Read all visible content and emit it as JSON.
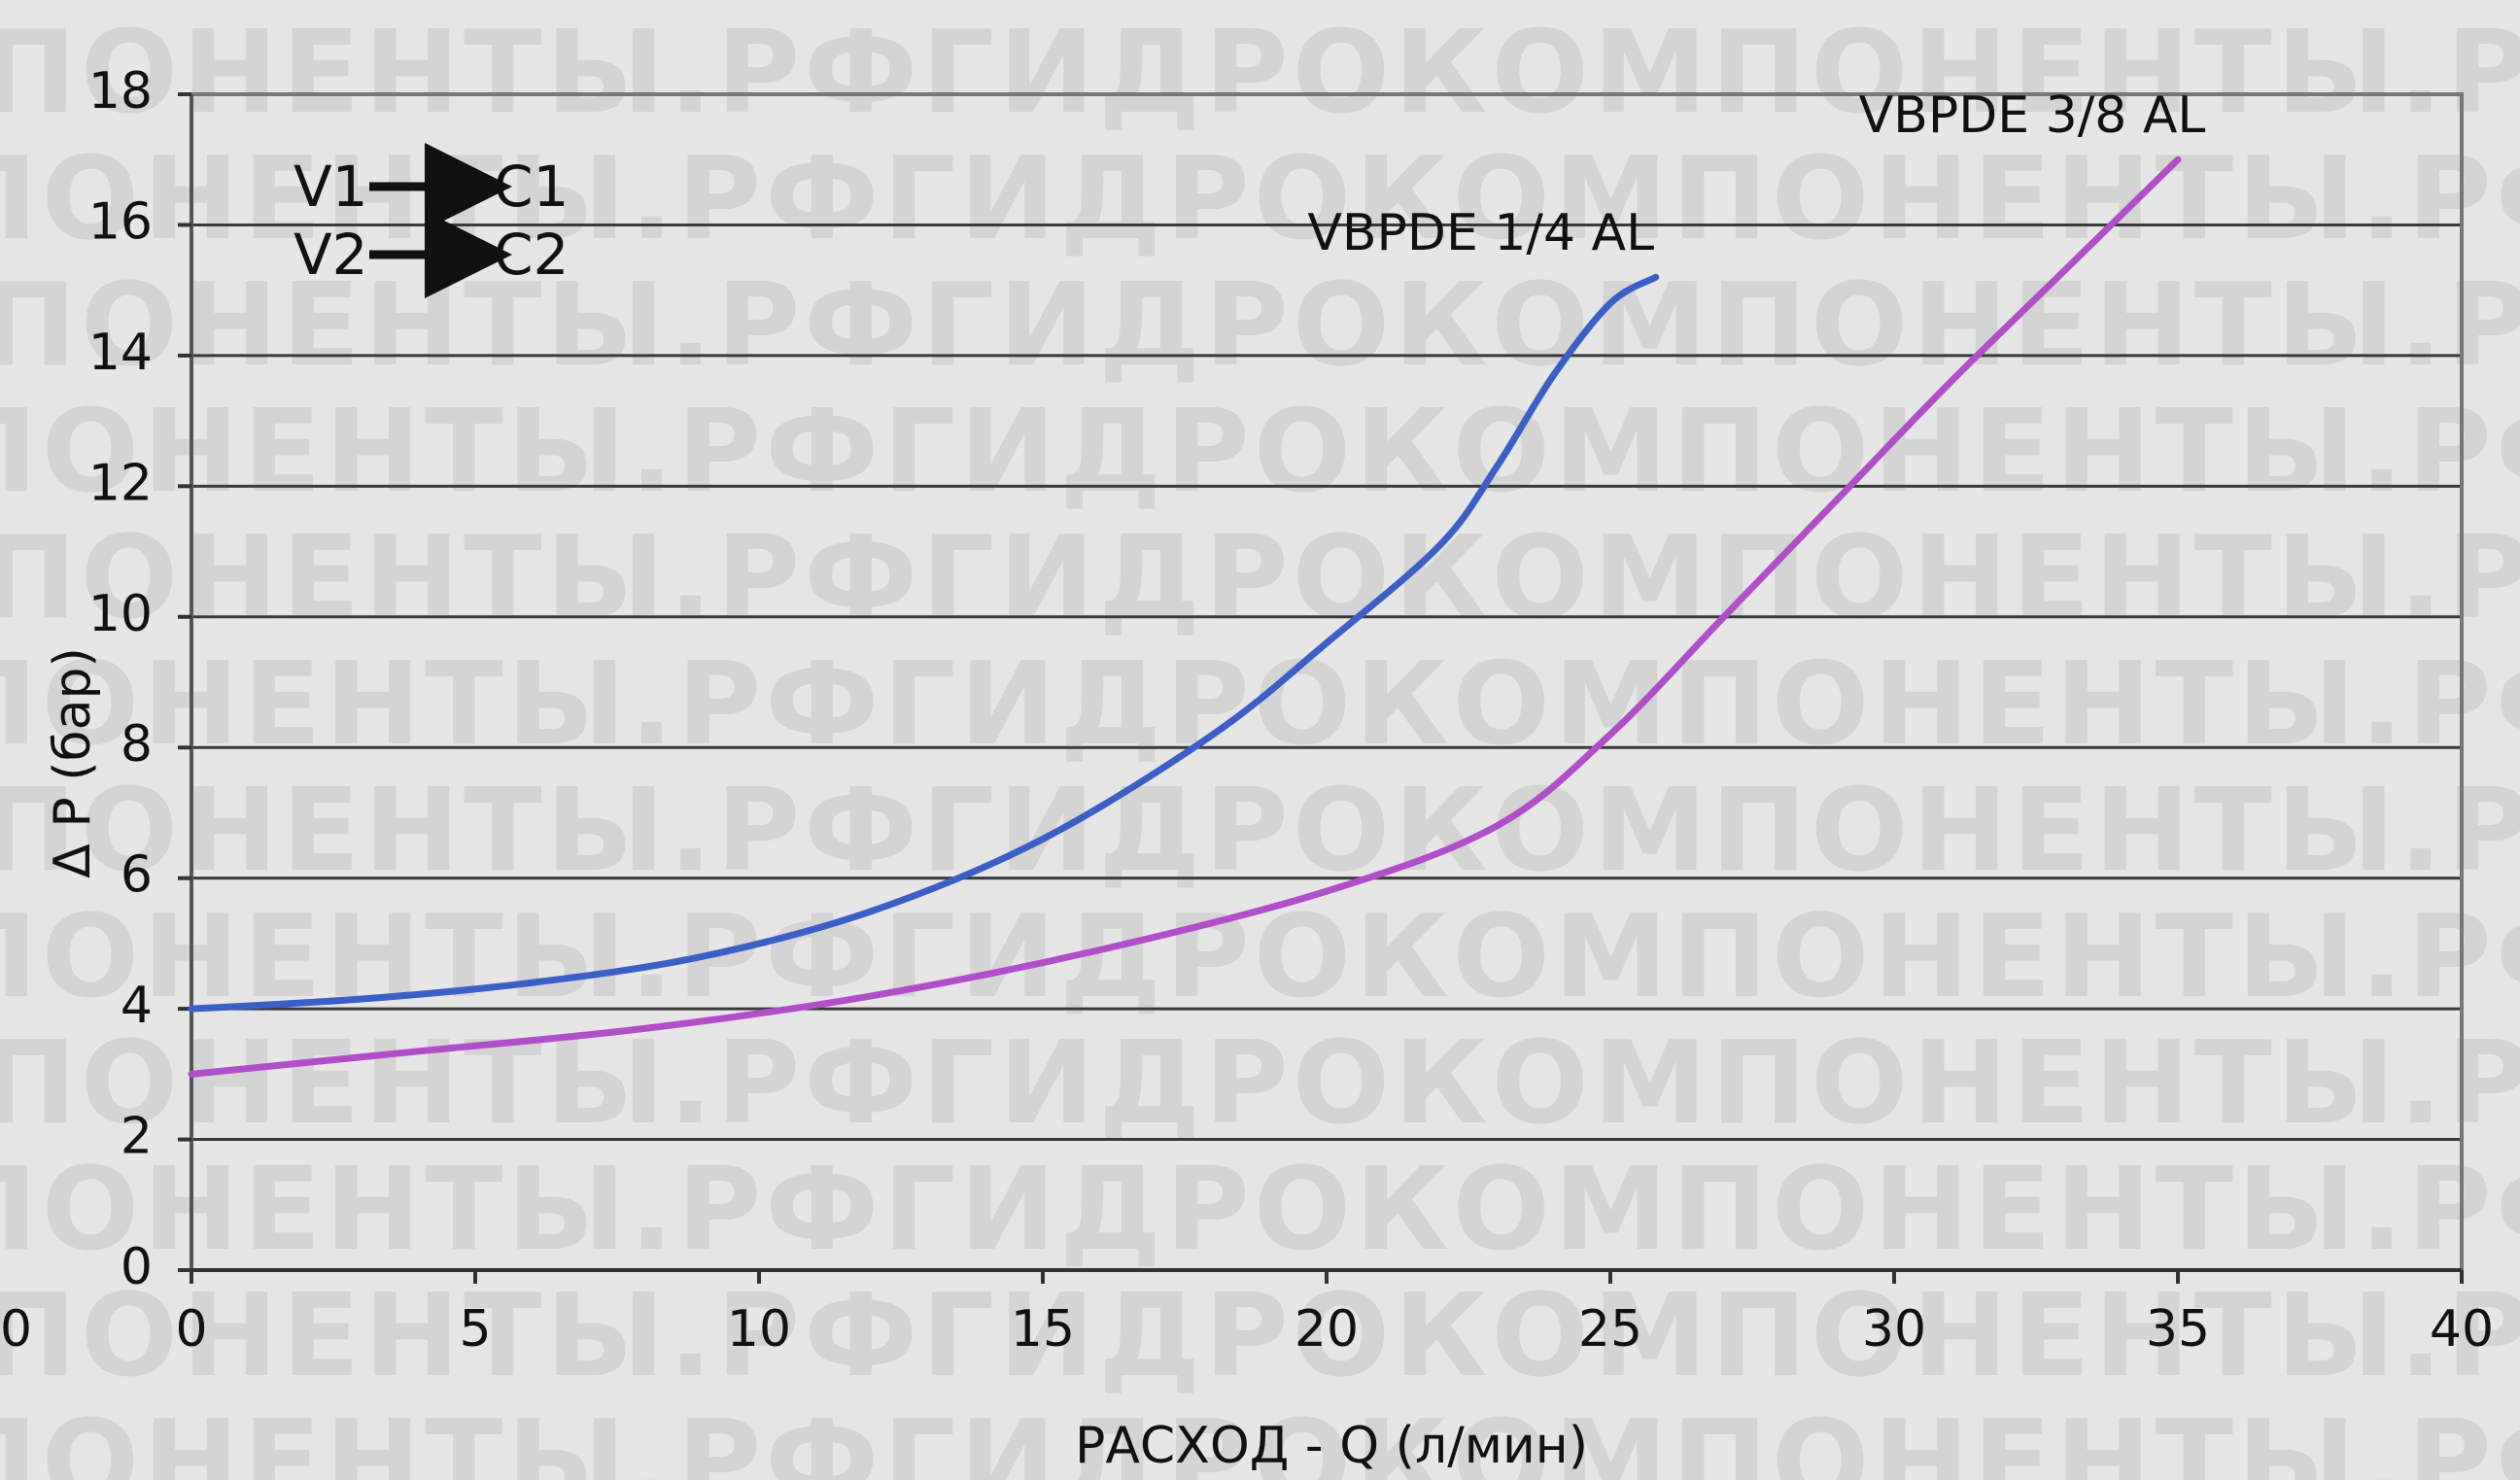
{
  "chart_data": {
    "type": "line",
    "title": "",
    "xlabel": "РАСХОД - Q (л/мин)",
    "ylabel": "Δ P (бар)",
    "xlim": [
      0,
      40
    ],
    "ylim": [
      0,
      18
    ],
    "x_ticks": [
      "0",
      "5",
      "10",
      "15",
      "20",
      "25",
      "30",
      "35",
      "40"
    ],
    "y_ticks": [
      "0",
      "2",
      "4",
      "6",
      "8",
      "10",
      "12",
      "14",
      "16",
      "18"
    ],
    "stray_tick_label": "0",
    "grid": "horizontal",
    "series": [
      {
        "name": "VBPDE 1/4 AL",
        "color": "#3b5fc6",
        "x": [
          0,
          3,
          6,
          9,
          12,
          15,
          18,
          20,
          22,
          23,
          24,
          25,
          25.8
        ],
        "y": [
          4.0,
          4.15,
          4.4,
          4.8,
          5.5,
          6.6,
          8.2,
          9.6,
          11.1,
          12.3,
          13.7,
          14.8,
          15.2
        ]
      },
      {
        "name": "VBPDE 3/8 AL",
        "color": "#b04fc8",
        "x": [
          0,
          4,
          8,
          12,
          16,
          20,
          23,
          25,
          27,
          29,
          31,
          33,
          35
        ],
        "y": [
          3.0,
          3.35,
          3.7,
          4.2,
          4.9,
          5.8,
          6.8,
          8.2,
          10.0,
          11.8,
          13.6,
          15.3,
          17.0
        ]
      }
    ],
    "legend": [
      {
        "from": "V1",
        "to": "C1"
      },
      {
        "from": "V2",
        "to": "C2"
      }
    ],
    "watermark": "ПОНЕНТЫ.РФГИДРОКОМПОНЕНТЫ.РФГИДРОКОМ"
  }
}
